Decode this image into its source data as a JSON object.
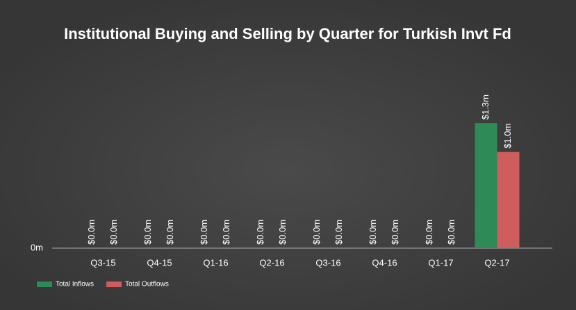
{
  "chart_data": {
    "type": "bar",
    "title": "Institutional Buying and Selling by Quarter for Turkish Invt Fd",
    "categories": [
      "Q3-15",
      "Q4-15",
      "Q1-16",
      "Q2-16",
      "Q3-16",
      "Q4-16",
      "Q1-17",
      "Q2-17"
    ],
    "series": [
      {
        "name": "Total Inflows",
        "color": "#2e8b57",
        "values": [
          0,
          0,
          0,
          0,
          0,
          0,
          0,
          1.3
        ],
        "value_labels": [
          "$0.0m",
          "$0.0m",
          "$0.0m",
          "$0.0m",
          "$0.0m",
          "$0.0m",
          "$0.0m",
          "$1.3m"
        ]
      },
      {
        "name": "Total Outflows",
        "color": "#d05d5d",
        "values": [
          0,
          0,
          0,
          0,
          0,
          0,
          0,
          1.0
        ],
        "value_labels": [
          "$0.0m",
          "$0.0m",
          "$0.0m",
          "$0.0m",
          "$0.0m",
          "$0.0m",
          "$0.0m",
          "$1.0m"
        ]
      }
    ],
    "ylim": [
      0,
      1.8
    ],
    "yticks": [
      {
        "value": 0,
        "label": "0m"
      }
    ],
    "grid": false,
    "legend": "bottom-left"
  }
}
